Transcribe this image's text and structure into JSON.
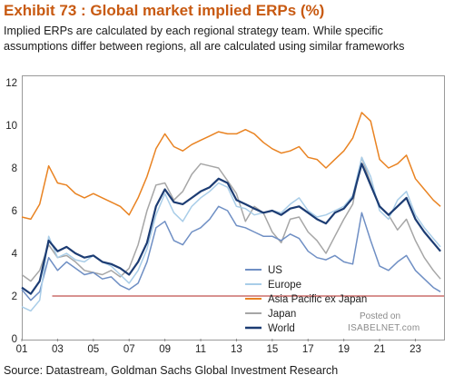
{
  "header": {
    "title": "Exhibit 73 : Global market implied ERPs (%)",
    "subtitle": "Implied ERPs are calculated by each regional strategy team. While specific assumptions differ between regions, all are calculated using similar frameworks"
  },
  "footer": {
    "source": "Source: Datastream, Goldman Sachs Global Investment Research"
  },
  "watermark": {
    "line1": "Posted on",
    "line2": "ISABELNET.com"
  },
  "chart_data": {
    "type": "line",
    "title": "Exhibit 73 : Global market implied ERPs (%)",
    "xlabel": "",
    "ylabel": "",
    "xlim": [
      2001,
      2024.6
    ],
    "ylim": [
      0,
      12
    ],
    "yticks": [
      0,
      2,
      4,
      6,
      8,
      10,
      12
    ],
    "xtick_labels": [
      "01",
      "03",
      "05",
      "07",
      "09",
      "11",
      "13",
      "15",
      "17",
      "19",
      "21",
      "23"
    ],
    "xtick_years": [
      2001,
      2003,
      2005,
      2007,
      2009,
      2011,
      2013,
      2015,
      2017,
      2019,
      2021,
      2023
    ],
    "grid": false,
    "legend_position": "bottom-center",
    "reference_line": {
      "y": 2,
      "color": "#c0504d"
    },
    "x": [
      2001,
      2001.5,
      2002,
      2002.5,
      2003,
      2003.5,
      2004,
      2004.5,
      2005,
      2005.5,
      2006,
      2006.5,
      2007,
      2007.5,
      2008,
      2008.5,
      2009,
      2009.5,
      2010,
      2010.5,
      2011,
      2011.5,
      2012,
      2012.5,
      2013,
      2013.5,
      2014,
      2014.5,
      2015,
      2015.5,
      2016,
      2016.5,
      2017,
      2017.5,
      2018,
      2018.5,
      2019,
      2019.5,
      2020,
      2020.5,
      2021,
      2021.5,
      2022,
      2022.5,
      2023,
      2023.5,
      2024,
      2024.4
    ],
    "series": [
      {
        "name": "US",
        "color": "#6f8fc4",
        "values": [
          2.3,
          1.8,
          2.2,
          3.8,
          3.2,
          3.6,
          3.3,
          3.0,
          3.1,
          2.8,
          2.9,
          2.5,
          2.3,
          2.6,
          3.6,
          5.2,
          5.5,
          4.6,
          4.4,
          5.0,
          5.2,
          5.6,
          6.2,
          6.0,
          5.3,
          5.2,
          5.0,
          4.8,
          4.8,
          4.6,
          4.9,
          4.7,
          4.1,
          3.8,
          3.7,
          3.9,
          3.6,
          3.5,
          5.9,
          4.6,
          3.4,
          3.2,
          3.6,
          3.9,
          3.2,
          2.8,
          2.4,
          2.2
        ]
      },
      {
        "name": "Europe",
        "color": "#a9cde8",
        "values": [
          1.5,
          1.3,
          1.8,
          4.8,
          3.8,
          4.0,
          3.7,
          3.6,
          3.9,
          3.6,
          3.4,
          3.0,
          2.6,
          3.2,
          4.2,
          5.8,
          6.8,
          5.9,
          5.5,
          6.2,
          6.6,
          6.9,
          7.3,
          7.1,
          6.2,
          6.1,
          5.8,
          5.9,
          6.0,
          5.9,
          6.3,
          6.6,
          6.0,
          5.7,
          5.8,
          6.0,
          6.2,
          6.7,
          8.5,
          7.6,
          6.0,
          5.6,
          6.5,
          6.9,
          5.8,
          5.2,
          4.7,
          4.3
        ]
      },
      {
        "name": "Asia Pacific ex Japan",
        "color": "#e98322",
        "values": [
          5.7,
          5.6,
          6.3,
          8.1,
          7.3,
          7.2,
          6.8,
          6.6,
          6.8,
          6.6,
          6.4,
          6.2,
          5.8,
          6.6,
          7.6,
          8.9,
          9.6,
          9.0,
          8.8,
          9.1,
          9.3,
          9.5,
          9.7,
          9.6,
          9.6,
          9.8,
          9.6,
          9.2,
          8.9,
          8.7,
          8.8,
          9.0,
          8.5,
          8.4,
          8.0,
          8.4,
          8.8,
          9.4,
          10.6,
          10.2,
          8.4,
          8.0,
          8.2,
          8.6,
          7.5,
          7.0,
          6.5,
          6.2
        ]
      },
      {
        "name": "Japan",
        "color": "#a6a6a6",
        "values": [
          3.0,
          2.7,
          3.2,
          4.4,
          3.8,
          3.9,
          3.6,
          3.2,
          3.1,
          3.0,
          3.2,
          2.9,
          3.3,
          4.4,
          6.0,
          7.2,
          7.3,
          6.5,
          6.9,
          7.7,
          8.2,
          8.1,
          8.0,
          7.4,
          6.8,
          5.5,
          6.2,
          5.9,
          5.0,
          4.5,
          5.6,
          5.7,
          5.0,
          4.6,
          4.0,
          4.8,
          5.6,
          6.3,
          8.5,
          7.3,
          6.2,
          5.8,
          5.1,
          5.6,
          4.6,
          3.8,
          3.2,
          2.8
        ]
      },
      {
        "name": "World",
        "color": "#1c3c73",
        "values": [
          2.4,
          2.1,
          2.7,
          4.6,
          4.1,
          4.3,
          4.0,
          3.8,
          3.9,
          3.6,
          3.5,
          3.3,
          3.0,
          3.6,
          4.5,
          6.2,
          7.0,
          6.4,
          6.3,
          6.6,
          6.9,
          7.1,
          7.5,
          7.3,
          6.5,
          6.3,
          6.1,
          5.9,
          6.0,
          5.8,
          6.1,
          6.2,
          5.9,
          5.6,
          5.4,
          5.9,
          6.1,
          6.6,
          8.2,
          7.2,
          6.2,
          5.8,
          6.2,
          6.6,
          5.6,
          5.0,
          4.5,
          4.1
        ]
      }
    ]
  }
}
